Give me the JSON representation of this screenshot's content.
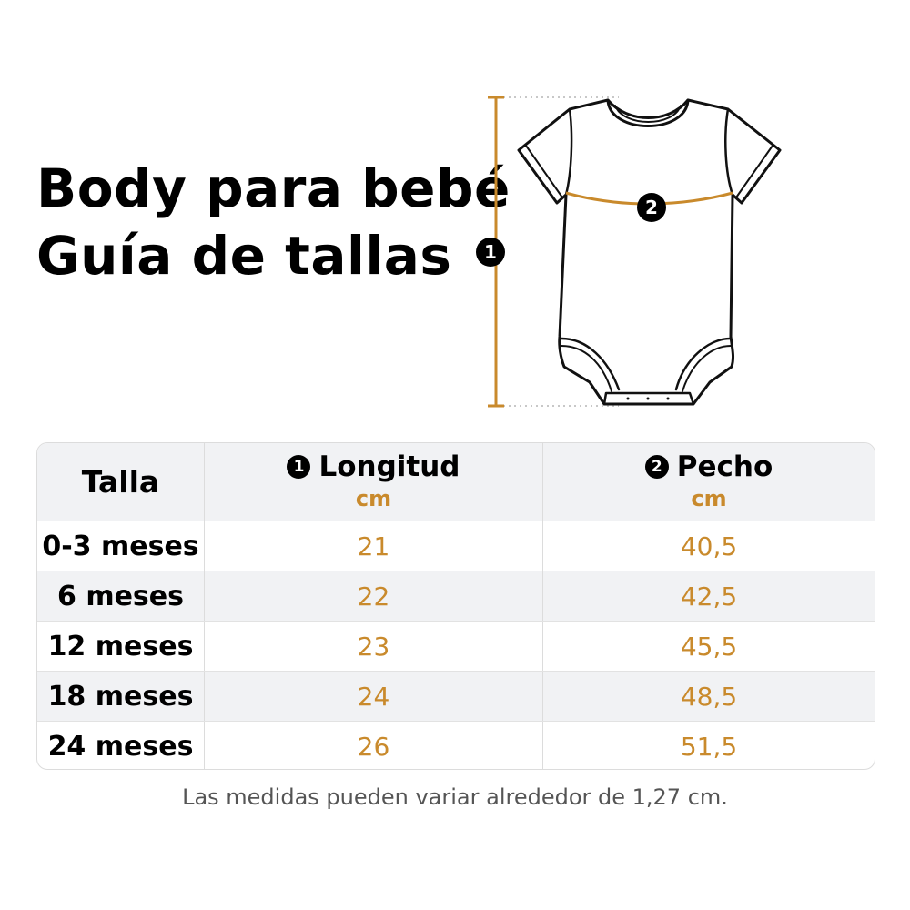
{
  "title": {
    "line1": "Body para bebé",
    "line2": "Guía de tallas"
  },
  "illustration": {
    "icon": "baby-bodysuit-icon",
    "marker_length": "1",
    "marker_chest": "2",
    "accent_color": "#c98a2c"
  },
  "table": {
    "headers": {
      "size": "Talla",
      "length_marker": "1",
      "length": "Longitud",
      "length_unit": "cm",
      "chest_marker": "2",
      "chest": "Pecho",
      "chest_unit": "cm"
    },
    "rows": [
      {
        "size": "0-3 meses",
        "length": "21",
        "chest": "40,5"
      },
      {
        "size": "6 meses",
        "length": "22",
        "chest": "42,5"
      },
      {
        "size": "12 meses",
        "length": "23",
        "chest": "45,5"
      },
      {
        "size": "18 meses",
        "length": "24",
        "chest": "48,5"
      },
      {
        "size": "24 meses",
        "length": "26",
        "chest": "51,5"
      }
    ]
  },
  "footnote": "Las medidas pueden variar alrededor de 1,27 cm.",
  "colors": {
    "accent": "#c98a2c",
    "header_bg": "#f1f2f4",
    "border": "#dcdcdc"
  }
}
